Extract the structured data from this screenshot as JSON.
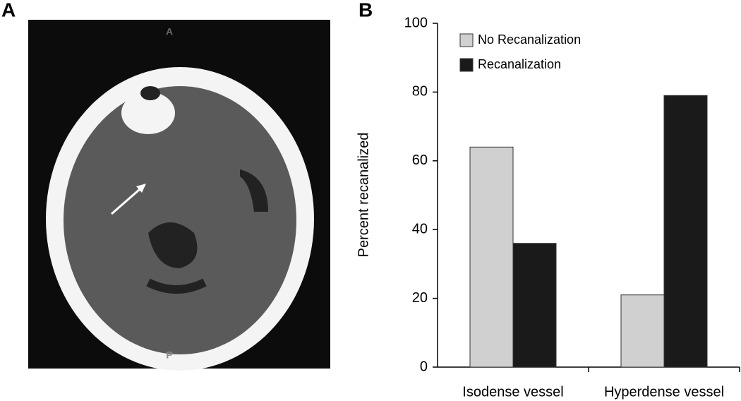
{
  "panel_labels": [
    "A",
    "B"
  ],
  "image": {
    "top_marker": "A",
    "bottom_marker": "P"
  },
  "chart_data": {
    "type": "bar",
    "y_label": "Percent recanalized",
    "categories": [
      "Isodense vessel",
      "Hyperdense vessel"
    ],
    "series": [
      {
        "name": "No Recanalization",
        "color": "#d0d0d0",
        "values": [
          64,
          21
        ]
      },
      {
        "name": "Recanalization",
        "color": "#1a1a1a",
        "values": [
          36,
          79
        ]
      }
    ],
    "ylim": [
      0,
      100
    ],
    "yticks": [
      0,
      20,
      40,
      60,
      80,
      100
    ],
    "grid": false,
    "legend": "top-left"
  }
}
